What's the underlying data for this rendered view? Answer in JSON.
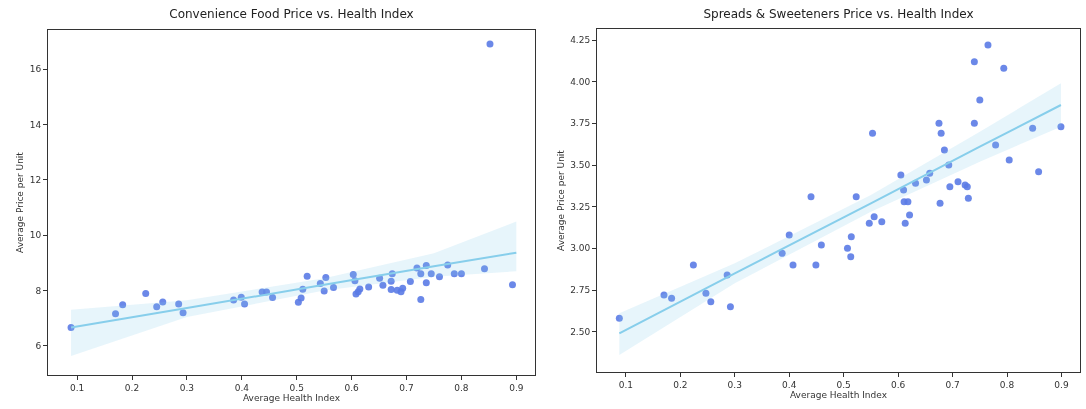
{
  "chart_data": [
    {
      "type": "scatter",
      "title": "Convenience Food Price vs. Health Index",
      "xlabel": "Average Health Index",
      "ylabel": "Average Price per Unit",
      "xlim": [
        0.047,
        0.934
      ],
      "ylim": [
        4.95,
        17.42
      ],
      "xticks": [
        0.1,
        0.2,
        0.3,
        0.4,
        0.5,
        0.6,
        0.7,
        0.8,
        0.9
      ],
      "yticks": [
        6,
        8,
        10,
        12,
        14,
        16
      ],
      "grid": false,
      "series": [
        {
          "marker": "circle",
          "color": "#5b7be6",
          "x": [
            0.089,
            0.17,
            0.183,
            0.225,
            0.245,
            0.256,
            0.285,
            0.293,
            0.385,
            0.399,
            0.405,
            0.437,
            0.445,
            0.456,
            0.503,
            0.508,
            0.511,
            0.519,
            0.543,
            0.55,
            0.553,
            0.567,
            0.603,
            0.606,
            0.608,
            0.612,
            0.615,
            0.631,
            0.651,
            0.657,
            0.674,
            0.672,
            0.672,
            0.683,
            0.69,
            0.693,
            0.707,
            0.719,
            0.726,
            0.726,
            0.736,
            0.736,
            0.745,
            0.76,
            0.775,
            0.787,
            0.8,
            0.842,
            0.852,
            0.893
          ],
          "values": [
            6.67,
            7.16,
            7.49,
            7.9,
            7.42,
            7.59,
            7.52,
            7.2,
            7.66,
            7.76,
            7.52,
            7.95,
            7.95,
            7.75,
            7.58,
            7.73,
            8.05,
            8.52,
            8.26,
            7.99,
            8.47,
            8.11,
            8.58,
            8.36,
            7.88,
            7.96,
            8.06,
            8.13,
            8.45,
            8.19,
            8.61,
            8.34,
            8.04,
            8.01,
            7.96,
            8.09,
            8.33,
            8.82,
            8.61,
            7.68,
            8.91,
            8.28,
            8.61,
            8.5,
            8.93,
            8.61,
            8.61,
            8.79,
            16.91,
            8.21
          ]
        },
        {
          "type": "line",
          "color": "#87ceeb",
          "x": [
            0.089,
            0.3,
            0.55,
            0.75,
            0.9
          ],
          "values": [
            6.67,
            7.37,
            8.21,
            8.88,
            9.37
          ],
          "lower": [
            5.64,
            7.05,
            8.0,
            8.5,
            8.7
          ],
          "upper": [
            7.31,
            7.65,
            8.45,
            9.35,
            10.5
          ]
        }
      ]
    },
    {
      "type": "scatter",
      "title": "Spreads & Sweeteners Price vs. Health Index",
      "xlabel": "Average Health Index",
      "ylabel": "Average Price per Unit",
      "xlim": [
        0.047,
        0.934
      ],
      "ylim": [
        2.258,
        4.316
      ],
      "xticks": [
        0.1,
        0.2,
        0.3,
        0.4,
        0.5,
        0.6,
        0.7,
        0.8,
        0.9
      ],
      "yticks": [
        {
          "value": 2.5,
          "label": "2.50"
        },
        {
          "value": 2.75,
          "label": "2.75"
        },
        {
          "value": 3,
          "label": "3.00"
        },
        {
          "value": 3.25,
          "label": "3.25"
        },
        {
          "value": 3.5,
          "label": "3.50"
        },
        {
          "value": 3.75,
          "label": "3.75"
        },
        {
          "value": 4,
          "label": "4.00"
        },
        {
          "value": 4.25,
          "label": "4.25"
        }
      ],
      "grid": false,
      "series": [
        {
          "marker": "circle",
          "color": "#5b7be6",
          "x": [
            0.088,
            0.17,
            0.184,
            0.224,
            0.247,
            0.256,
            0.286,
            0.292,
            0.387,
            0.4,
            0.407,
            0.44,
            0.449,
            0.459,
            0.507,
            0.513,
            0.514,
            0.523,
            0.547,
            0.553,
            0.556,
            0.57,
            0.605,
            0.61,
            0.611,
            0.613,
            0.618,
            0.621,
            0.632,
            0.652,
            0.658,
            0.675,
            0.677,
            0.679,
            0.685,
            0.693,
            0.695,
            0.71,
            0.723,
            0.727,
            0.729,
            0.74,
            0.74,
            0.75,
            0.765,
            0.779,
            0.794,
            0.804,
            0.847,
            0.858,
            0.899
          ],
          "values": [
            2.58,
            2.72,
            2.7,
            2.9,
            2.73,
            2.68,
            2.84,
            2.65,
            2.97,
            3.08,
            2.9,
            3.31,
            2.9,
            3.02,
            3.0,
            2.95,
            3.07,
            3.31,
            3.15,
            3.69,
            3.19,
            3.16,
            3.44,
            3.35,
            3.28,
            3.15,
            3.28,
            3.2,
            3.39,
            3.41,
            3.45,
            3.75,
            3.27,
            3.69,
            3.59,
            3.5,
            3.37,
            3.4,
            3.38,
            3.37,
            3.3,
            3.75,
            4.12,
            3.89,
            4.22,
            3.62,
            4.08,
            3.53,
            3.72,
            3.46,
            3.73
          ]
        },
        {
          "type": "line",
          "color": "#87ceeb",
          "x": [
            0.088,
            0.3,
            0.55,
            0.75,
            0.899
          ],
          "values": [
            2.49,
            2.85,
            3.27,
            3.61,
            3.86
          ],
          "lower": [
            2.36,
            2.79,
            3.22,
            3.52,
            3.73
          ],
          "upper": [
            2.61,
            2.91,
            3.32,
            3.7,
            3.99
          ]
        }
      ]
    }
  ]
}
